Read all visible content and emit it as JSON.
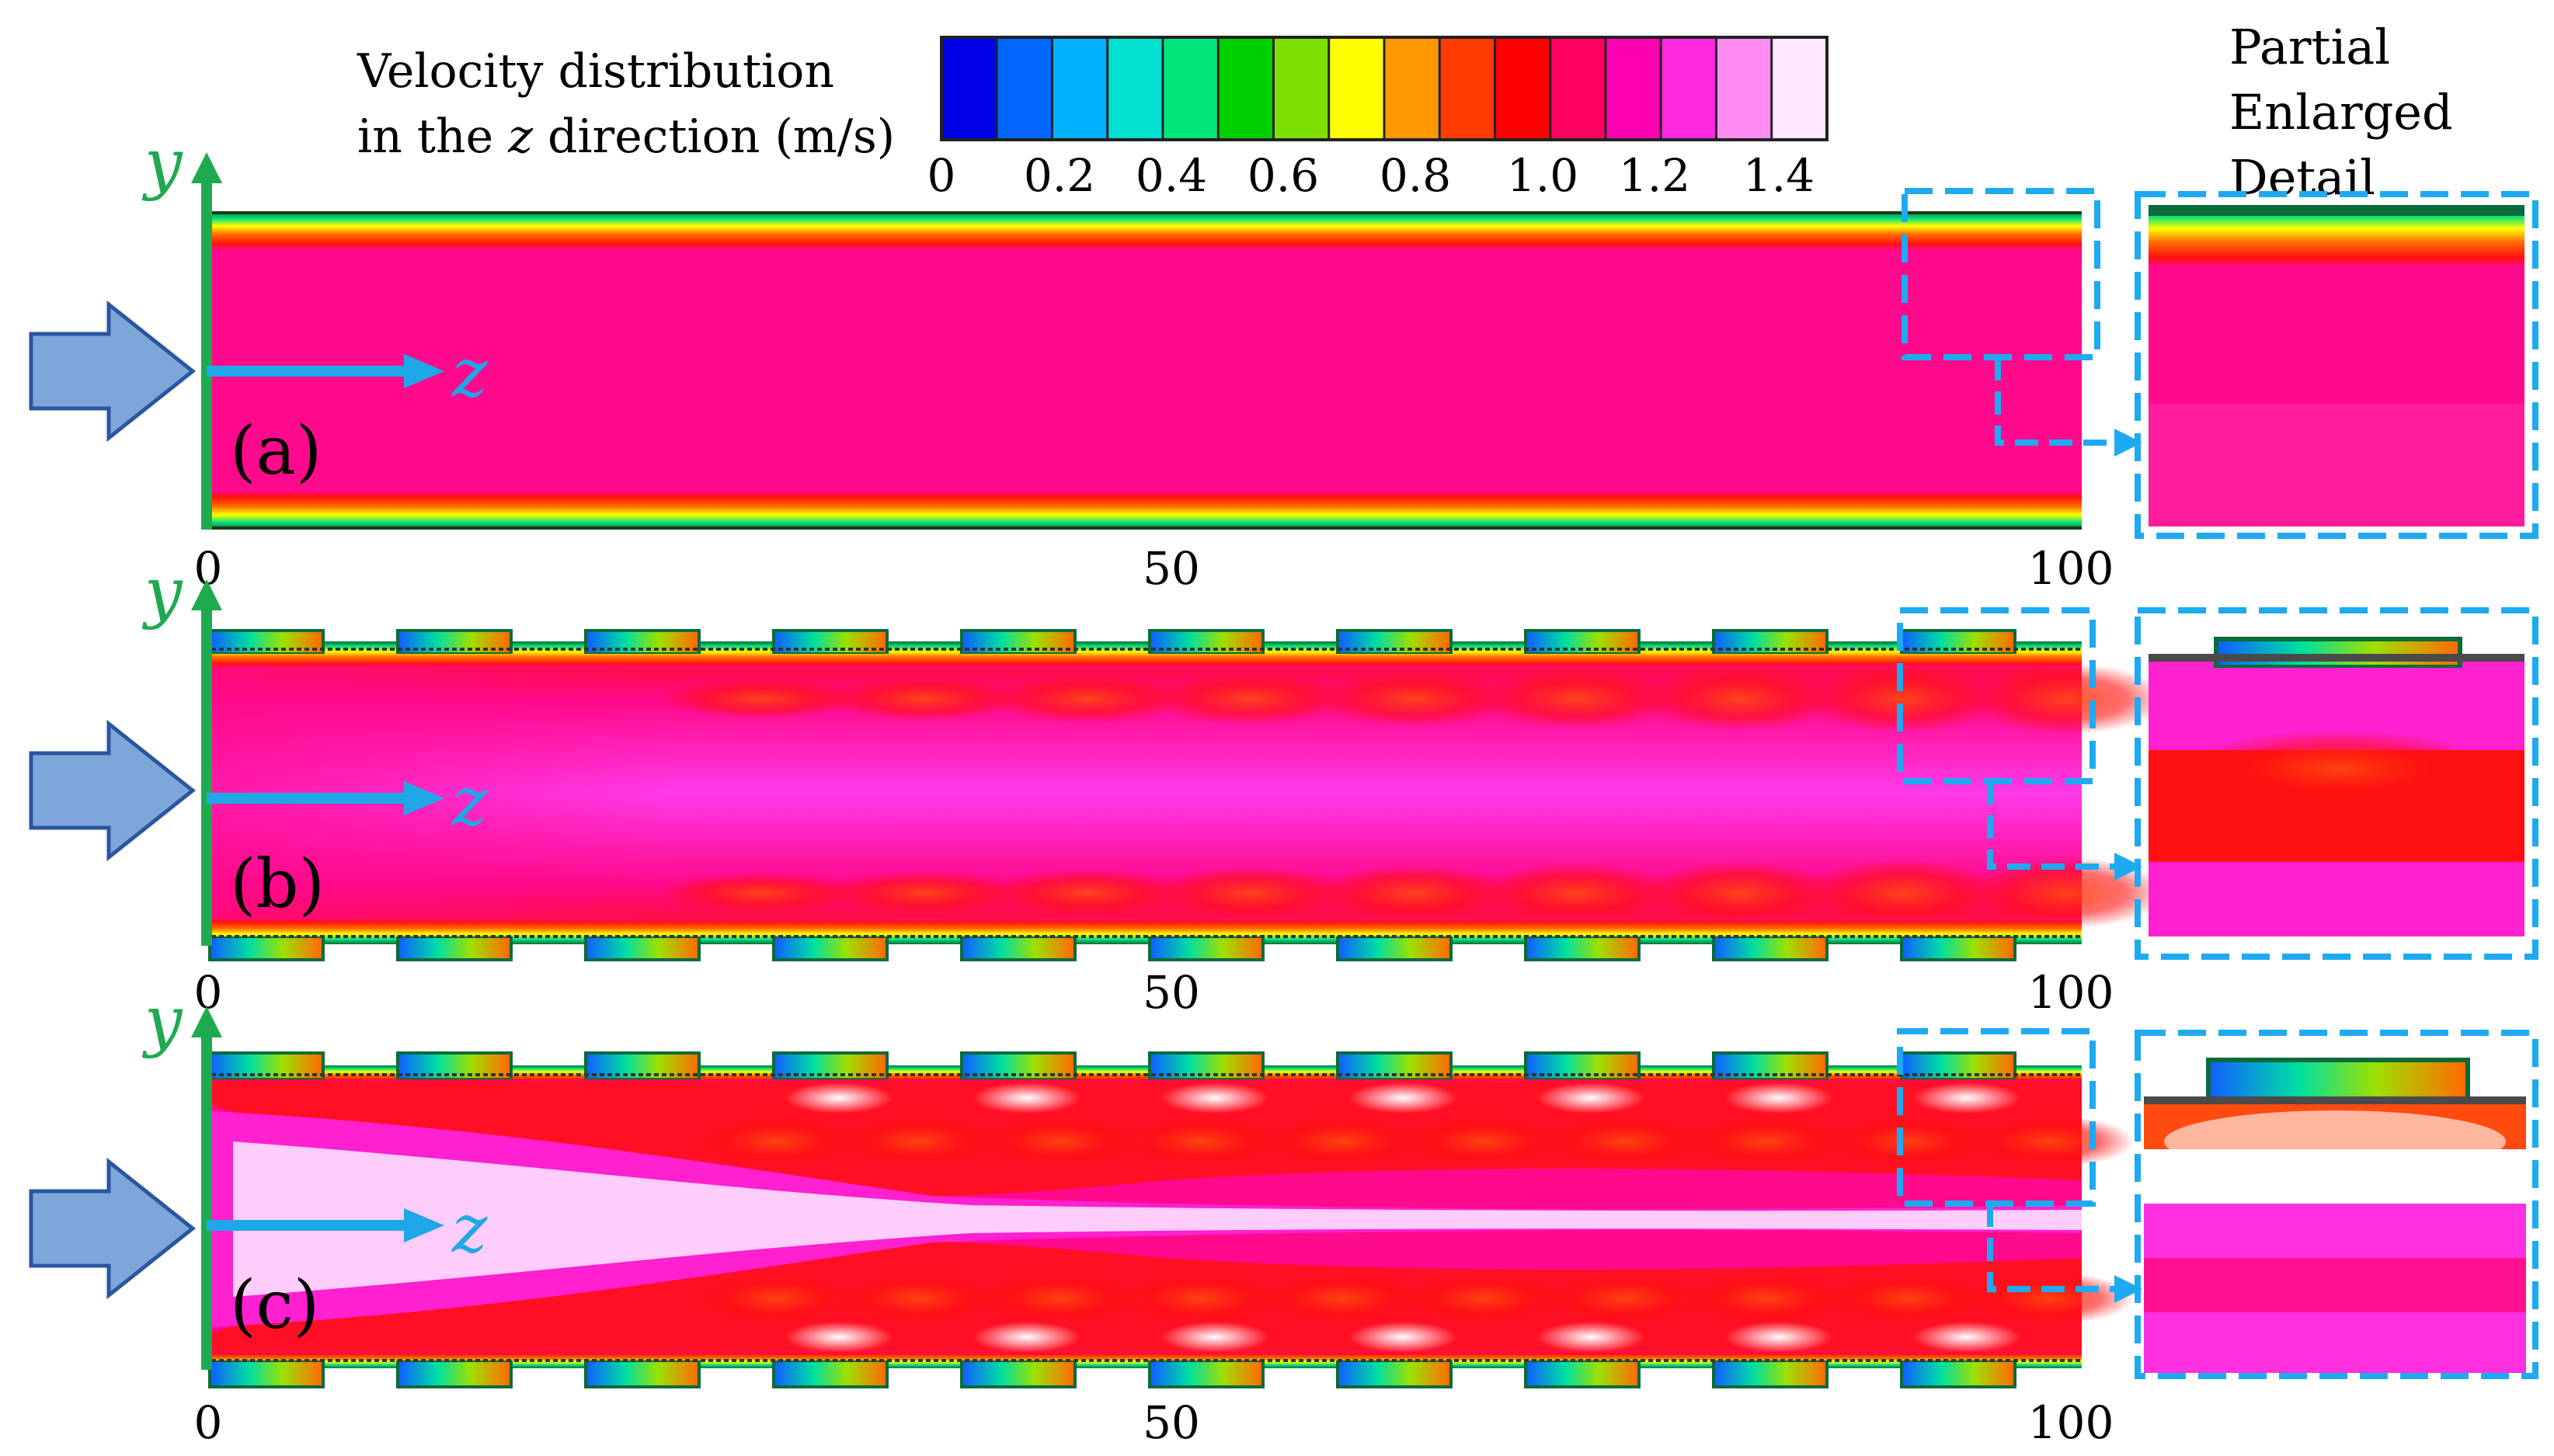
{
  "legend": {
    "title_line1": "Velocity distribution",
    "title_line2_pre": "in the ",
    "title_line2_var": "z",
    "title_line2_post": " direction (m/s)",
    "ticks": [
      "0",
      "0.2",
      "0.4",
      "0.6",
      "0.8",
      "1.0",
      "1.2",
      "1.4"
    ],
    "colors": [
      "#0000e6",
      "#0066ff",
      "#00b0ff",
      "#00e0d0",
      "#00e67a",
      "#00d000",
      "#7ee000",
      "#ffff00",
      "#ff9800",
      "#ff3a00",
      "#ff0000",
      "#ff0060",
      "#ff00b0",
      "#ff28e0",
      "#ff8cf0",
      "#ffe6ff"
    ]
  },
  "detail_label": [
    "Partial",
    "Enlarged",
    "Detail"
  ],
  "axes": {
    "y": "y",
    "z": "z"
  },
  "panels": [
    {
      "label": "(a)",
      "ticks": [
        "0",
        "50",
        "100"
      ]
    },
    {
      "label": "(b)",
      "ticks": [
        "0",
        "50",
        "100"
      ]
    },
    {
      "label": "(c)",
      "ticks": [
        "0",
        "50",
        "100"
      ]
    }
  ],
  "colors": {
    "axis_y": "#1faa4f",
    "axis_z": "#1ea8e8",
    "arrow_fill": "#7ea6d8",
    "arrow_stroke": "#2a55a0",
    "dash": "#1eaaf0",
    "bulk": "#ff0a8c",
    "core": "#ff3ae8",
    "white": "#ffffff",
    "red": "#ff1010"
  }
}
